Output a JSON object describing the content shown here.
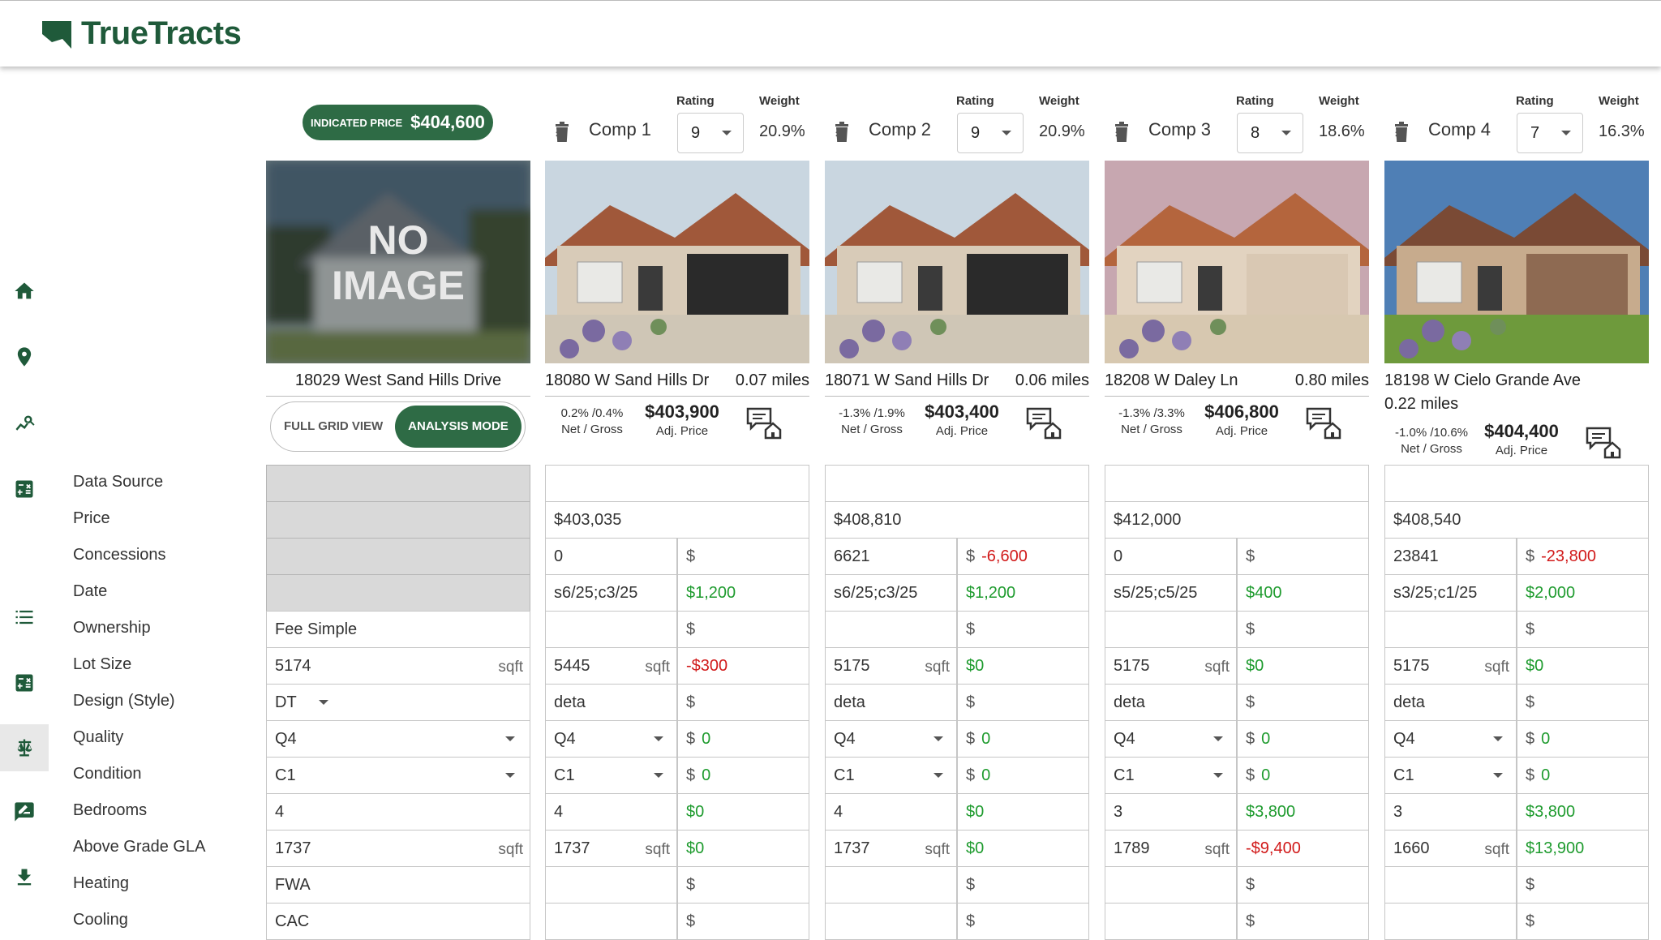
{
  "app": {
    "name": "TrueTracts"
  },
  "nav": [
    "home-icon",
    "map-pin-icon",
    "analytics-icon",
    "calculator-icon",
    "list-icon",
    "calculator-alt-icon",
    "scale-icon",
    "edit-report-icon",
    "download-icon"
  ],
  "subject": {
    "indicated_label": "INDICATED PRICE",
    "indicated_value": "$404,600",
    "photo_text_1": "NO",
    "photo_text_2": "IMAGE",
    "address": "18029 West Sand Hills Drive",
    "toggle": {
      "full": "FULL GRID VIEW",
      "analysis": "ANALYSIS MODE"
    }
  },
  "headers": {
    "rating": "Rating",
    "weight": "Weight",
    "net_gross": "Net / Gross",
    "adj_price": "Adj. Price",
    "currency": "$",
    "sqft": "sqft"
  },
  "row_labels": [
    "Data Source",
    "Price",
    "Concessions",
    "Date",
    "Ownership",
    "Lot Size",
    "Design (Style)",
    "Quality",
    "Condition",
    "Bedrooms",
    "Above Grade GLA",
    "Heating",
    "Cooling"
  ],
  "subject_values": {
    "ownership": "Fee Simple",
    "lot_size": "5174",
    "design": "DT",
    "quality": "Q4",
    "condition": "C1",
    "bedrooms": "4",
    "gla": "1737",
    "heating": "FWA",
    "cooling": "CAC"
  },
  "comps": [
    {
      "title": "Comp 1",
      "rating": "9",
      "weight": "20.9%",
      "address": "18080 W Sand Hills Dr",
      "distance": "0.07 miles",
      "net_gross": "0.2% /0.4%",
      "adj_price": "$403,900",
      "price": "$403,035",
      "concessions": "0",
      "concessions_adj": "",
      "date": "s6/25;c3/25",
      "date_adj": "$1,200",
      "lot": "5445",
      "lot_adj": "-$300",
      "design": "deta",
      "quality": "Q4",
      "quality_adj": "0",
      "condition": "C1",
      "condition_adj": "0",
      "bedrooms": "4",
      "bedrooms_adj": "$0",
      "gla": "1737",
      "gla_adj": "$0"
    },
    {
      "title": "Comp 2",
      "rating": "9",
      "weight": "20.9%",
      "address": "18071 W Sand Hills Dr",
      "distance": "0.06 miles",
      "net_gross": "-1.3% /1.9%",
      "adj_price": "$403,400",
      "price": "$408,810",
      "concessions": "6621",
      "concessions_adj": "-6,600",
      "date": "s6/25;c3/25",
      "date_adj": "$1,200",
      "lot": "5175",
      "lot_adj": "$0",
      "design": "deta",
      "quality": "Q4",
      "quality_adj": "0",
      "condition": "C1",
      "condition_adj": "0",
      "bedrooms": "4",
      "bedrooms_adj": "$0",
      "gla": "1737",
      "gla_adj": "$0"
    },
    {
      "title": "Comp 3",
      "rating": "8",
      "weight": "18.6%",
      "address": "18208 W Daley Ln",
      "distance": "0.80 miles",
      "net_gross": "-1.3% /3.3%",
      "adj_price": "$406,800",
      "price": "$412,000",
      "concessions": "0",
      "concessions_adj": "",
      "date": "s5/25;c5/25",
      "date_adj": "$400",
      "lot": "5175",
      "lot_adj": "$0",
      "design": "deta",
      "quality": "Q4",
      "quality_adj": "0",
      "condition": "C1",
      "condition_adj": "0",
      "bedrooms": "3",
      "bedrooms_adj": "$3,800",
      "gla": "1789",
      "gla_adj": "-$9,400"
    },
    {
      "title": "Comp 4",
      "rating": "7",
      "weight": "16.3%",
      "address": "18198 W Cielo Grande Ave",
      "distance": "0.22 miles",
      "net_gross": "-1.0% /10.6%",
      "adj_price": "$404,400",
      "price": "$408,540",
      "concessions": "23841",
      "concessions_adj": "-23,800",
      "date": "s3/25;c1/25",
      "date_adj": "$2,000",
      "lot": "5175",
      "lot_adj": "$0",
      "design": "deta",
      "quality": "Q4",
      "quality_adj": "0",
      "condition": "C1",
      "condition_adj": "0",
      "bedrooms": "3",
      "bedrooms_adj": "$3,800",
      "gla": "1660",
      "gla_adj": "$13,900"
    }
  ]
}
